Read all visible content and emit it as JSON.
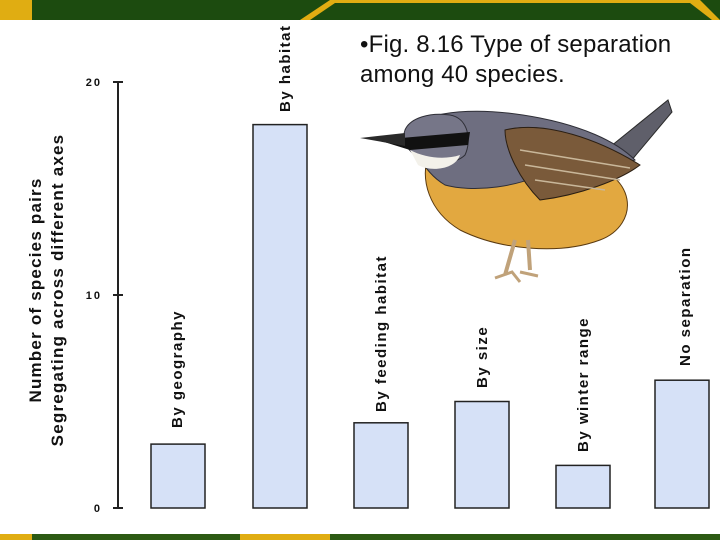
{
  "title": {
    "line1": "•Fig. 8.16 Type of separation",
    "line2": "among 40 species."
  },
  "chart_data": {
    "type": "bar",
    "title": "Fig. 8.16 Type of separation among 40 species.",
    "ylabel": [
      "Number of species pairs",
      "Segregating across different axes"
    ],
    "xlabel": "",
    "categories": [
      "By geography",
      "By habitat",
      "By feeding habitat",
      "By size",
      "By winter range",
      "No separation"
    ],
    "values": [
      3,
      18,
      4,
      5,
      2,
      6
    ],
    "ylim": [
      0,
      20
    ],
    "yticks": [
      0,
      10,
      20
    ],
    "grid": false,
    "legend": "none"
  },
  "colors": {
    "bar_fill": "#d6e1f7",
    "bar_stroke": "#222222",
    "top_band_dark": "#1c4b0f",
    "top_band_accent": "#e0ad12",
    "bottom_band": "#2c5a14",
    "axis": "#222222"
  },
  "decor": {
    "illustration_icon": "nuthatch-bird-icon"
  }
}
